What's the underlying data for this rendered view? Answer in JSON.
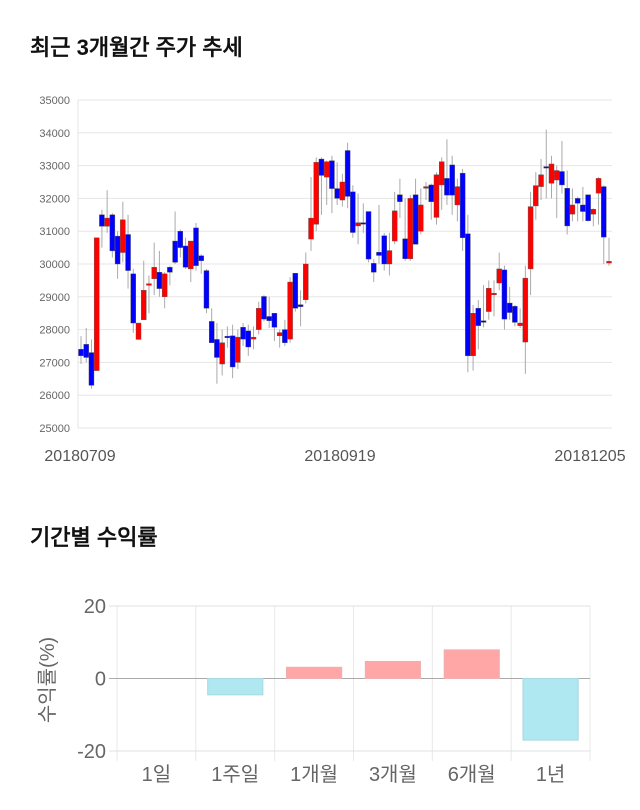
{
  "titles": {
    "price": "최근 3개월간 주가 추세",
    "returns": "기간별 수익률"
  },
  "colors": {
    "up": "#ff0000",
    "down": "#0000ff",
    "pos_bar": "#ffa6a6",
    "neg_bar": "#b0e8f2"
  },
  "chart_data": [
    {
      "type": "candlestick",
      "title": "최근 3개월간 주가 추세",
      "ylim": [
        25000,
        35000
      ],
      "yticks": [
        "35000",
        "34000",
        "33000",
        "32000",
        "31000",
        "30000",
        "29000",
        "28000",
        "27000",
        "26000",
        "25000"
      ],
      "xticks": [
        "20180709",
        "20180919",
        "20181205"
      ],
      "grid": true,
      "ohlc": [
        [
          27400,
          27800,
          26950,
          27200
        ],
        [
          27550,
          28050,
          27000,
          27150
        ],
        [
          27300,
          27700,
          26200,
          26300
        ],
        [
          26750,
          30800,
          26750,
          30800
        ],
        [
          31500,
          31650,
          30500,
          31150
        ],
        [
          31150,
          32250,
          30950,
          31400
        ],
        [
          31500,
          31550,
          30200,
          30400
        ],
        [
          30850,
          31000,
          29550,
          30000
        ],
        [
          30350,
          31900,
          30050,
          31350
        ],
        [
          30900,
          31500,
          29250,
          29800
        ],
        [
          29700,
          29850,
          27900,
          28200
        ],
        [
          27700,
          28200,
          27700,
          28200
        ],
        [
          28300,
          30100,
          28300,
          29200
        ],
        [
          29350,
          29650,
          28500,
          29400
        ],
        [
          29550,
          30650,
          29050,
          29900
        ],
        [
          29750,
          30400,
          29000,
          29250
        ],
        [
          29000,
          29750,
          28650,
          29700
        ],
        [
          29900,
          29950,
          29350,
          29750
        ],
        [
          30700,
          31600,
          30000,
          30050
        ],
        [
          31000,
          31050,
          30200,
          30500
        ],
        [
          30550,
          30800,
          29850,
          29900
        ],
        [
          29850,
          30700,
          29450,
          30700
        ],
        [
          31100,
          31250,
          29800,
          29950
        ],
        [
          30250,
          30300,
          29700,
          30100
        ],
        [
          29800,
          29850,
          28500,
          28650
        ],
        [
          28250,
          28650,
          27600,
          27600
        ],
        [
          27700,
          28200,
          26350,
          27150
        ],
        [
          26950,
          28000,
          26600,
          27600
        ],
        [
          27800,
          28100,
          27450,
          27750
        ],
        [
          27810,
          28150,
          26520,
          26860
        ],
        [
          27000,
          28000,
          26800,
          27770
        ],
        [
          28070,
          28200,
          27500,
          27710
        ],
        [
          27960,
          28150,
          27200,
          27470
        ],
        [
          27710,
          28100,
          27400,
          27770
        ],
        [
          28000,
          28850,
          27850,
          28650
        ],
        [
          29010,
          29050,
          28250,
          28320
        ],
        [
          28400,
          29000,
          28050,
          28270
        ],
        [
          28500,
          28500,
          27650,
          28070
        ],
        [
          27810,
          28000,
          27450,
          27910
        ],
        [
          28000,
          28300,
          27500,
          27600
        ],
        [
          27710,
          29600,
          27600,
          29450
        ],
        [
          29720,
          29700,
          28550,
          28650
        ],
        [
          28760,
          29200,
          28100,
          28700
        ],
        [
          28910,
          30350,
          28800,
          30000
        ],
        [
          30760,
          32650,
          30400,
          31400
        ],
        [
          31210,
          33250,
          31000,
          33100
        ],
        [
          33200,
          33250,
          31500,
          32700
        ],
        [
          32650,
          33150,
          31800,
          33120
        ],
        [
          33150,
          33300,
          31550,
          32300
        ],
        [
          32300,
          33100,
          31800,
          32000
        ],
        [
          31950,
          32750,
          31750,
          32500
        ],
        [
          33460,
          33700,
          31700,
          32060
        ],
        [
          32200,
          32400,
          30800,
          30960
        ],
        [
          31160,
          32150,
          30600,
          31260
        ],
        [
          31260,
          31850,
          30950,
          31240
        ],
        [
          31600,
          31600,
          30050,
          30150
        ],
        [
          30020,
          30150,
          29450,
          29750
        ],
        [
          30360,
          31800,
          30000,
          30260
        ],
        [
          30860,
          30950,
          29800,
          30000
        ],
        [
          30000,
          30950,
          29650,
          30410
        ],
        [
          30700,
          32200,
          30600,
          31620
        ],
        [
          32110,
          32600,
          31400,
          31900
        ],
        [
          30770,
          32000,
          30100,
          30160
        ],
        [
          30160,
          32100,
          30100,
          32000
        ],
        [
          32110,
          32600,
          30600,
          30600
        ],
        [
          31000,
          32300,
          30900,
          31800
        ],
        [
          32310,
          32500,
          31950,
          32360
        ],
        [
          32410,
          32450,
          31350,
          31900
        ],
        [
          31420,
          32800,
          31200,
          32720
        ],
        [
          32410,
          33250,
          31650,
          33120
        ],
        [
          32610,
          33800,
          31800,
          32100
        ],
        [
          33020,
          33300,
          31500,
          32100
        ],
        [
          31800,
          32600,
          31300,
          32360
        ],
        [
          32770,
          32900,
          30400,
          30800
        ],
        [
          30920,
          31500,
          26700,
          27200
        ],
        [
          27200,
          28750,
          26750,
          28500
        ],
        [
          28650,
          28900,
          27400,
          28120
        ],
        [
          28270,
          29360,
          28070,
          28220
        ],
        [
          28550,
          29500,
          28300,
          29260
        ],
        [
          29060,
          29500,
          28400,
          29110
        ],
        [
          29420,
          30350,
          29200,
          29850
        ],
        [
          29820,
          29950,
          28000,
          28320
        ],
        [
          28810,
          29300,
          28300,
          28520
        ],
        [
          28710,
          28750,
          28100,
          28220
        ],
        [
          28120,
          28650,
          28050,
          28200
        ],
        [
          27620,
          29950,
          26650,
          29570
        ],
        [
          29850,
          32200,
          29050,
          31750
        ],
        [
          31770,
          32800,
          31350,
          32390
        ],
        [
          32360,
          33200,
          31950,
          32720
        ],
        [
          32970,
          34100,
          32000,
          32950
        ],
        [
          32460,
          33300,
          32000,
          33050
        ],
        [
          32560,
          33000,
          31400,
          32850
        ],
        [
          32820,
          33750,
          32150,
          32410
        ],
        [
          32310,
          32850,
          30900,
          31160
        ],
        [
          31520,
          32300,
          31300,
          31800
        ],
        [
          32000,
          32050,
          31300,
          31850
        ],
        [
          31800,
          32350,
          31300,
          31600
        ],
        [
          32110,
          32100,
          31300,
          31320
        ],
        [
          31520,
          31700,
          31150,
          31670
        ],
        [
          32160,
          32650,
          31200,
          32610
        ],
        [
          32360,
          32400,
          30000,
          30820
        ],
        [
          30030,
          30800,
          29950,
          30080
        ]
      ]
    },
    {
      "type": "bar",
      "title": "기간별 수익률",
      "ylabel": "수익률(%)",
      "ylim": [
        -20,
        20
      ],
      "yticks": [
        "20",
        "0",
        "-20"
      ],
      "categories": [
        "1일",
        "1주일",
        "1개월",
        "3개월",
        "6개월",
        "1년"
      ],
      "values": [
        0,
        -4.5,
        3.1,
        4.7,
        7.9,
        -17.0
      ],
      "grid": true
    }
  ]
}
